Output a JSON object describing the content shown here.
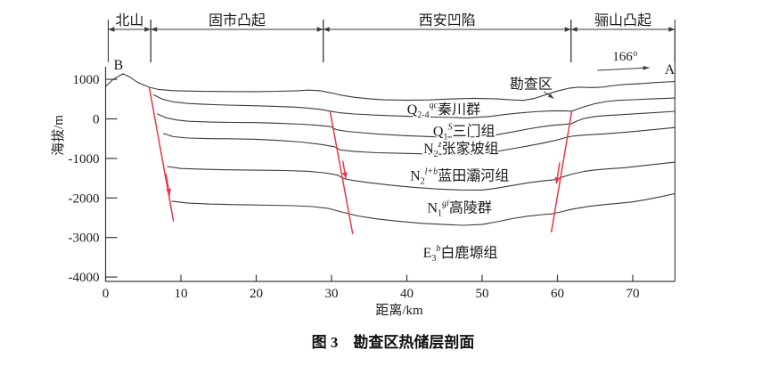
{
  "caption": "图 3　勘查区热储层剖面",
  "colors": {
    "stratum_line": "#3a3a3a",
    "fault": "#e8364a",
    "axis": "#3a3a3a",
    "text": "#1a1a1a",
    "background": "#ffffff"
  },
  "chart_data": {
    "type": "line",
    "title": "图 3　勘查区热储层剖面",
    "x_axis": {
      "label": "距离/km",
      "ticks": [
        0,
        10,
        20,
        30,
        40,
        50,
        60,
        70
      ],
      "range": [
        0,
        75.6
      ]
    },
    "y_axis": {
      "label": "海拔/m",
      "ticks": [
        1000,
        0,
        -1000,
        -2000,
        -3000,
        -4000
      ],
      "range": [
        -4100,
        1500
      ]
    },
    "section_endpoints": {
      "left": "B",
      "left_km": 1.7,
      "left_el": 1250,
      "right": "A",
      "right_km": 74.9,
      "right_el": 1140
    },
    "bearing": {
      "text": "166°",
      "label_km": 69,
      "label_el": 1480,
      "arrow_from": [
        65.3,
        1227
      ],
      "arrow_to": [
        72.2,
        1295
      ]
    },
    "survey_area": {
      "text": "勘查区",
      "label_km": 56.5,
      "label_el": 770,
      "arrow_from": [
        58.2,
        690
      ],
      "arrow_to": [
        59.5,
        520
      ]
    },
    "tectonic_zones": [
      {
        "label": "北山",
        "from_km": 0.35,
        "to_km": 6.0
      },
      {
        "label": "固市凸起",
        "from_km": 6.0,
        "to_km": 28.9
      },
      {
        "label": "西安凹陷",
        "from_km": 28.9,
        "to_km": 61.8
      },
      {
        "label": "骊山凸起",
        "from_km": 61.8,
        "to_km": 75.6
      }
    ],
    "strata": [
      {
        "symbol": "Q",
        "sub": "2-4",
        "sup": "qc",
        "name": "秦川群",
        "label_km": 44.9,
        "label_el": 125
      },
      {
        "symbol": "Q",
        "sub": "1",
        "sup": "S",
        "name": "三门组",
        "label_km": 47.6,
        "label_el": -430
      },
      {
        "symbol": "N",
        "sub": "2",
        "sup": "z",
        "name": "张家坡组",
        "label_km": 47.2,
        "label_el": -870
      },
      {
        "symbol": "N",
        "sub": "2",
        "sup": "l+b",
        "name": "蓝田灞河组",
        "label_km": 47.0,
        "label_el": -1555
      },
      {
        "symbol": "N",
        "sub": "1",
        "sup": "gl",
        "name": "高陵群",
        "label_km": 47.0,
        "label_el": -2370
      },
      {
        "symbol": "E",
        "sub": "3",
        "sup": "b",
        "name": "白鹿塬组",
        "label_km": 47.1,
        "label_el": -3500
      }
    ],
    "horizons": [
      {
        "name": "ground-surface",
        "points": [
          [
            0,
            820
          ],
          [
            1,
            1000
          ],
          [
            2.3,
            1140
          ],
          [
            3.2,
            1060
          ],
          [
            4.2,
            930
          ],
          [
            5,
            860
          ],
          [
            5.8,
            800
          ],
          [
            7,
            745
          ],
          [
            9,
            715
          ],
          [
            12,
            700
          ],
          [
            16,
            692
          ],
          [
            20,
            690
          ],
          [
            23,
            698
          ],
          [
            25.5,
            712
          ],
          [
            27,
            728
          ],
          [
            28.5,
            712
          ],
          [
            30,
            655
          ],
          [
            31.5,
            592
          ],
          [
            33,
            548
          ],
          [
            35,
            508
          ],
          [
            37,
            482
          ],
          [
            40,
            470
          ],
          [
            43,
            480
          ],
          [
            46,
            505
          ],
          [
            49,
            520
          ],
          [
            52,
            505
          ],
          [
            54,
            480
          ],
          [
            55.5,
            468
          ],
          [
            57,
            520
          ],
          [
            58.5,
            615
          ],
          [
            60,
            705
          ],
          [
            61.5,
            775
          ],
          [
            63,
            805
          ],
          [
            64.5,
            790
          ],
          [
            66,
            805
          ],
          [
            67.5,
            845
          ],
          [
            69,
            872
          ],
          [
            71,
            892
          ],
          [
            73,
            918
          ],
          [
            75.6,
            945
          ]
        ]
      },
      {
        "name": "base-qinchuan",
        "points": [
          [
            6.4,
            608
          ],
          [
            7.5,
            500
          ],
          [
            9,
            430
          ],
          [
            11,
            390
          ],
          [
            13,
            370
          ],
          [
            16,
            350
          ],
          [
            19,
            335
          ],
          [
            22,
            320
          ],
          [
            25,
            300
          ],
          [
            27,
            272
          ],
          [
            28.5,
            240
          ],
          [
            29.8,
            195
          ],
          [
            31,
            158
          ],
          [
            33,
            125
          ],
          [
            36,
            95
          ],
          [
            40,
            65
          ],
          [
            44,
            45
          ],
          [
            48,
            25
          ],
          [
            51,
            60
          ],
          [
            53,
            110
          ],
          [
            55,
            150
          ],
          [
            57,
            180
          ],
          [
            59,
            200
          ],
          [
            60.5,
            205
          ],
          [
            61.9,
            195
          ],
          [
            62.6,
            245
          ],
          [
            63.5,
            305
          ],
          [
            65,
            385
          ],
          [
            66.5,
            440
          ],
          [
            68,
            468
          ],
          [
            70,
            485
          ],
          [
            72.5,
            505
          ],
          [
            75.6,
            528
          ]
        ]
      },
      {
        "name": "base-sanmen",
        "points": [
          [
            6.9,
            124
          ],
          [
            8,
            30
          ],
          [
            9.5,
            -30
          ],
          [
            11,
            -60
          ],
          [
            14,
            -80
          ],
          [
            17,
            -90
          ],
          [
            20,
            -95
          ],
          [
            23,
            -110
          ],
          [
            26,
            -135
          ],
          [
            28,
            -160
          ],
          [
            29.9,
            -195
          ],
          [
            30.6,
            -270
          ],
          [
            32,
            -315
          ],
          [
            34,
            -350
          ],
          [
            36,
            -380
          ],
          [
            40,
            -425
          ],
          [
            44,
            -455
          ],
          [
            47,
            -465
          ],
          [
            50,
            -450
          ],
          [
            52,
            -400
          ],
          [
            54,
            -330
          ],
          [
            56,
            -260
          ],
          [
            58,
            -195
          ],
          [
            59.5,
            -160
          ],
          [
            61,
            -140
          ],
          [
            61.9,
            -120
          ],
          [
            62.6,
            -55
          ],
          [
            63.5,
            10
          ],
          [
            65,
            60
          ],
          [
            66.5,
            85
          ],
          [
            68,
            100
          ],
          [
            70.5,
            130
          ],
          [
            73,
            160
          ],
          [
            75.6,
            192
          ]
        ]
      },
      {
        "name": "base-zhangjiapo",
        "points": [
          [
            7.7,
            -372
          ],
          [
            9,
            -450
          ],
          [
            11,
            -485
          ],
          [
            14,
            -500
          ],
          [
            17,
            -505
          ],
          [
            20,
            -515
          ],
          [
            23,
            -545
          ],
          [
            26,
            -585
          ],
          [
            28.5,
            -645
          ],
          [
            30.4,
            -705
          ],
          [
            31.2,
            -785
          ],
          [
            33,
            -825
          ],
          [
            36,
            -855
          ],
          [
            40,
            -875
          ],
          [
            44,
            -893
          ],
          [
            47,
            -903
          ],
          [
            50,
            -880
          ],
          [
            52,
            -820
          ],
          [
            54,
            -755
          ],
          [
            56,
            -690
          ],
          [
            58,
            -615
          ],
          [
            59.5,
            -555
          ],
          [
            60.5,
            -505
          ],
          [
            61.3,
            -465
          ],
          [
            61.9,
            -440
          ],
          [
            63,
            -420
          ],
          [
            64.5,
            -398
          ],
          [
            66.5,
            -377
          ],
          [
            69,
            -340
          ],
          [
            71.5,
            -295
          ],
          [
            73.5,
            -257
          ],
          [
            75.6,
            -218
          ]
        ]
      },
      {
        "name": "base-lantian-bahe",
        "points": [
          [
            8.2,
            -1205
          ],
          [
            10,
            -1255
          ],
          [
            13,
            -1275
          ],
          [
            16,
            -1288
          ],
          [
            20,
            -1297
          ],
          [
            24,
            -1307
          ],
          [
            27,
            -1327
          ],
          [
            29,
            -1362
          ],
          [
            30.8,
            -1422
          ],
          [
            31.6,
            -1510
          ],
          [
            33,
            -1560
          ],
          [
            35,
            -1615
          ],
          [
            38,
            -1680
          ],
          [
            41,
            -1732
          ],
          [
            44,
            -1772
          ],
          [
            47,
            -1798
          ],
          [
            50,
            -1800
          ],
          [
            52,
            -1750
          ],
          [
            54,
            -1685
          ],
          [
            56,
            -1620
          ],
          [
            58,
            -1570
          ],
          [
            59.5,
            -1540
          ],
          [
            60.5,
            -1480
          ],
          [
            62,
            -1395
          ],
          [
            63.5,
            -1330
          ],
          [
            65,
            -1290
          ],
          [
            67,
            -1260
          ],
          [
            69,
            -1235
          ],
          [
            71,
            -1190
          ],
          [
            73.5,
            -1140
          ],
          [
            75.6,
            -1095
          ]
        ]
      },
      {
        "name": "base-gaoling",
        "points": [
          [
            8.8,
            -2080
          ],
          [
            11,
            -2130
          ],
          [
            14,
            -2155
          ],
          [
            18,
            -2172
          ],
          [
            22,
            -2185
          ],
          [
            25,
            -2197
          ],
          [
            27.5,
            -2218
          ],
          [
            29.5,
            -2262
          ],
          [
            31.5,
            -2362
          ],
          [
            33.5,
            -2455
          ],
          [
            36,
            -2530
          ],
          [
            39,
            -2592
          ],
          [
            42,
            -2642
          ],
          [
            45,
            -2672
          ],
          [
            47.5,
            -2692
          ],
          [
            50,
            -2672
          ],
          [
            52,
            -2602
          ],
          [
            54,
            -2522
          ],
          [
            56,
            -2462
          ],
          [
            58,
            -2422
          ],
          [
            59.3,
            -2402
          ],
          [
            60.5,
            -2352
          ],
          [
            62,
            -2282
          ],
          [
            64,
            -2217
          ],
          [
            66,
            -2172
          ],
          [
            68,
            -2137
          ],
          [
            70,
            -2100
          ],
          [
            71.5,
            -2052
          ],
          [
            73.5,
            -1977
          ],
          [
            75.6,
            -1890
          ]
        ]
      }
    ],
    "faults": [
      {
        "name": "fault-west",
        "points": [
          [
            5.8,
            800
          ],
          [
            9.0,
            -2580
          ]
        ],
        "arrow": [
          [
            8.0,
            -1380
          ],
          [
            8.5,
            -1930
          ]
        ]
      },
      {
        "name": "fault-middle",
        "points": [
          [
            29.8,
            195
          ],
          [
            32.8,
            -2900
          ]
        ],
        "arrow": [
          [
            31.5,
            -1060
          ],
          [
            31.9,
            -1510
          ]
        ]
      },
      {
        "name": "fault-east",
        "points": [
          [
            61.9,
            195
          ],
          [
            59.2,
            -2855
          ]
        ],
        "arrow": [
          [
            60.3,
            -1100
          ],
          [
            59.85,
            -1640
          ]
        ]
      }
    ]
  }
}
